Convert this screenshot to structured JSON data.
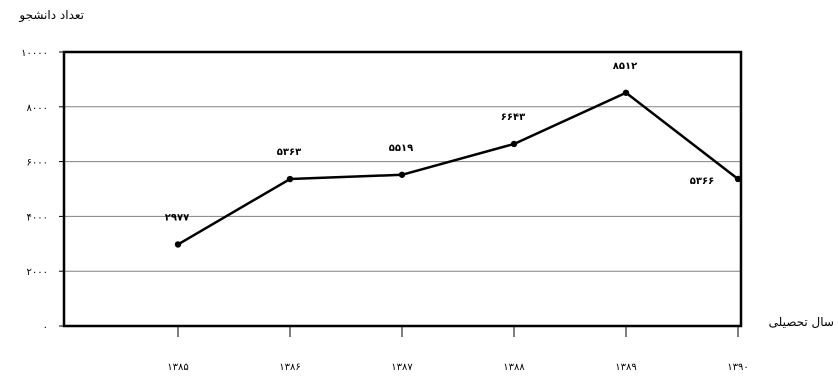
{
  "chart_data": {
    "type": "line",
    "ylabel": "تعداد دانشجو",
    "xlabel": "سال تحصیلی",
    "ylim": [
      0,
      10000
    ],
    "yticks": [
      0,
      2000,
      4000,
      6000,
      8000,
      10000
    ],
    "ytick_labels": [
      "۰",
      "۲۰۰۰",
      "۴۰۰۰",
      "۶۰۰۰",
      "۸۰۰۰",
      "۱۰۰۰۰"
    ],
    "categories": [
      "۱۳۸۵",
      "۱۳۸۶",
      "۱۳۸۷",
      "۱۳۸۸",
      "۱۳۸۹",
      "۱۳۹۰"
    ],
    "series": [
      {
        "values": [
          2977,
          5363,
          5519,
          6643,
          8512,
          5366
        ],
        "data_labels": [
          "۲۹۷۷",
          "۵۳۶۳",
          "۵۵۱۹",
          "۶۶۴۳",
          "۸۵۱۲",
          "۵۳۶۶"
        ]
      }
    ],
    "grid": true,
    "legend": "none",
    "line_color": "#000000"
  }
}
